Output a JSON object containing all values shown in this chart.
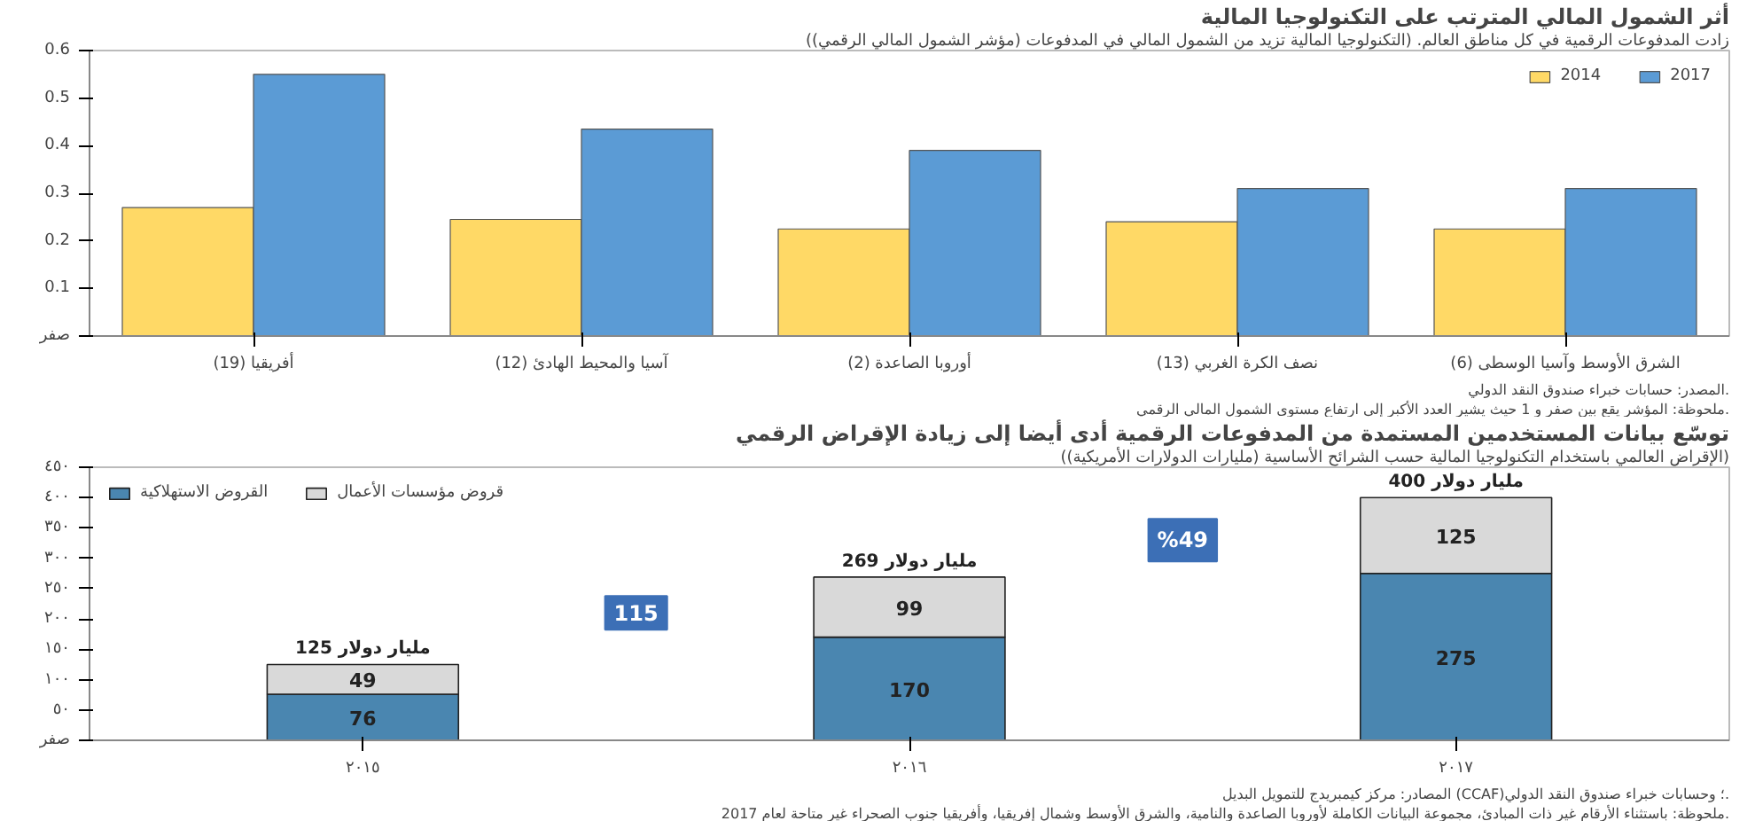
{
  "chart_data": [
    {
      "type": "bar",
      "title": "أثر الشمول المالي المترتب على التكنولوجيا المالية",
      "subtitle": "زادت المدفوعات الرقمية في كل مناطق العالم. (التكنولوجيا المالية تزيد من الشمول المالي في المدفوعات (مؤشر الشمول المالي الرقمي))",
      "categories": [
        "أفريقيا (19)",
        "آسيا والمحيط الهادئ (12)",
        "أوروبا الصاعدة (2)",
        "نصف الكرة الغربي (13)",
        "الشرق الأوسط وآسيا الوسطى (6)"
      ],
      "series": [
        {
          "name": "2014",
          "color": "#ffd966",
          "values": [
            0.27,
            0.245,
            0.225,
            0.24,
            0.225
          ]
        },
        {
          "name": "2017",
          "color": "#5b9bd5",
          "values": [
            0.55,
            0.435,
            0.39,
            0.31,
            0.31
          ]
        }
      ],
      "ylim": [
        0,
        0.6
      ],
      "yticks": [
        {
          "value": 0,
          "label": "صفر"
        },
        0.1,
        0.2,
        0.3,
        0.4,
        0.5,
        0.6
      ],
      "legend": "top right",
      "annotations": [
        "المصدر: حسابات خبراء صندوق النقد الدولي.",
        "ملحوظة: المؤشر يقع بين صفر و 1 حيث يشير العدد الأكبر إلى ارتفاع مستوى الشمول المالي الرقمي."
      ]
    },
    {
      "type": "bar",
      "stacked": true,
      "data_labels": true,
      "title": "توسّع بيانات المستخدمين المستمدة من المدفوعات الرقمية أدى أيضا إلى زيادة الإقراض الرقمي",
      "subtitle": "(الإقراض العالمي باستخدام التكنولوجيا المالية حسب الشرائح الأساسية (مليارات الدولارات الأمريكية))",
      "categories": [
        "٢٠١٥",
        "٢٠١٦",
        "٢٠١٧"
      ],
      "series": [
        {
          "name": "القروض الاستهلاكية",
          "color": "#4a86b0",
          "values": [
            76,
            170,
            275
          ]
        },
        {
          "name": "قروض مؤسسات الأعمال",
          "color": "#d9d9d9",
          "values": [
            49,
            99,
            125
          ]
        }
      ],
      "totals": [
        "125 مليار دولار",
        "269 مليار دولار",
        "400 مليار دولار"
      ],
      "ylim": [
        0,
        450
      ],
      "yticks": [
        {
          "value": 0,
          "label": "صفر"
        },
        {
          "value": 50,
          "label": "٥٠"
        },
        {
          "value": 100,
          "label": "١٠٠"
        },
        {
          "value": 150,
          "label": "١٥٠"
        },
        {
          "value": 200,
          "label": "٢٠٠"
        },
        {
          "value": 250,
          "label": "٢٥٠"
        },
        {
          "value": 300,
          "label": "٣٠٠"
        },
        {
          "value": 350,
          "label": "٣٥٠"
        },
        {
          "value": 400,
          "label": "٤٠٠"
        },
        {
          "value": 450,
          "label": "٤٥٠"
        }
      ],
      "legend": "top left",
      "annotations": [
        {
          "text": "115",
          "y": 210
        },
        {
          "text": "%49",
          "y": 330
        },
        "المصادر: مركز كيمبريدج للتمويل البديل (CCAF)؛ وحسابات خبراء صندوق النقد الدولي.",
        "ملحوظة: باستثناء الأرقام غير ذات المبادئ، مجموعة البيانات الكاملة لأوروبا الصاعدة والنامية، والشرق الأوسط وشمال إفريقيا، وأفريقيا جنوب الصحراء غير متاحة لعام 2017."
      ]
    }
  ]
}
